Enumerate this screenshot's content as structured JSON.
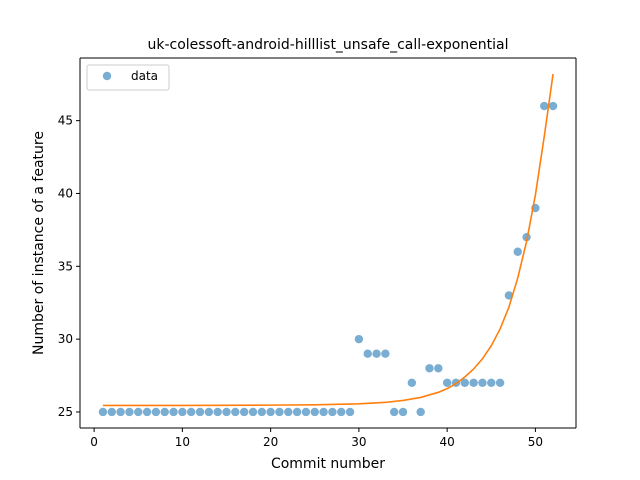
{
  "chart_data": {
    "type": "scatter",
    "title": "uk-colessoft-android-hilllist_unsafe_call-exponential",
    "xlabel": "Commit number",
    "ylabel": "Number of instance of a feature",
    "xlim": [
      -1.6,
      54.6
    ],
    "ylim": [
      23.9,
      49.3
    ],
    "xticks": [
      0,
      10,
      20,
      30,
      40,
      50
    ],
    "yticks": [
      25,
      30,
      35,
      40,
      45
    ],
    "grid": false,
    "legend_position": "top-left",
    "series": [
      {
        "name": "data",
        "kind": "scatter",
        "color": "#1f77b4",
        "x": [
          1,
          2,
          3,
          4,
          5,
          6,
          7,
          8,
          9,
          10,
          11,
          12,
          13,
          14,
          15,
          16,
          17,
          18,
          19,
          20,
          21,
          22,
          23,
          24,
          25,
          26,
          27,
          28,
          29,
          30,
          31,
          32,
          33,
          34,
          35,
          36,
          37,
          38,
          39,
          40,
          41,
          42,
          43,
          44,
          45,
          46,
          47,
          48,
          49,
          50,
          51,
          52
        ],
        "y": [
          25,
          25,
          25,
          25,
          25,
          25,
          25,
          25,
          25,
          25,
          25,
          25,
          25,
          25,
          25,
          25,
          25,
          25,
          25,
          25,
          25,
          25,
          25,
          25,
          25,
          25,
          25,
          25,
          25,
          30,
          29,
          29,
          29,
          25,
          25,
          27,
          25,
          28,
          28,
          27,
          27,
          27,
          27,
          27,
          27,
          27,
          33,
          36,
          37,
          39,
          46,
          46
        ]
      },
      {
        "kind": "line",
        "color": "#ff7f0e",
        "x": [
          1,
          5,
          10,
          15,
          20,
          25,
          30,
          33,
          35,
          37,
          39,
          40,
          41,
          42,
          43,
          44,
          45,
          46,
          47,
          48,
          49,
          50,
          51,
          52
        ],
        "y": [
          25.45,
          25.45,
          25.45,
          25.46,
          25.47,
          25.49,
          25.56,
          25.66,
          25.79,
          26.0,
          26.35,
          26.6,
          26.95,
          27.4,
          27.95,
          28.65,
          29.55,
          30.7,
          32.2,
          34.2,
          36.7,
          39.9,
          43.9,
          48.2
        ]
      }
    ]
  }
}
